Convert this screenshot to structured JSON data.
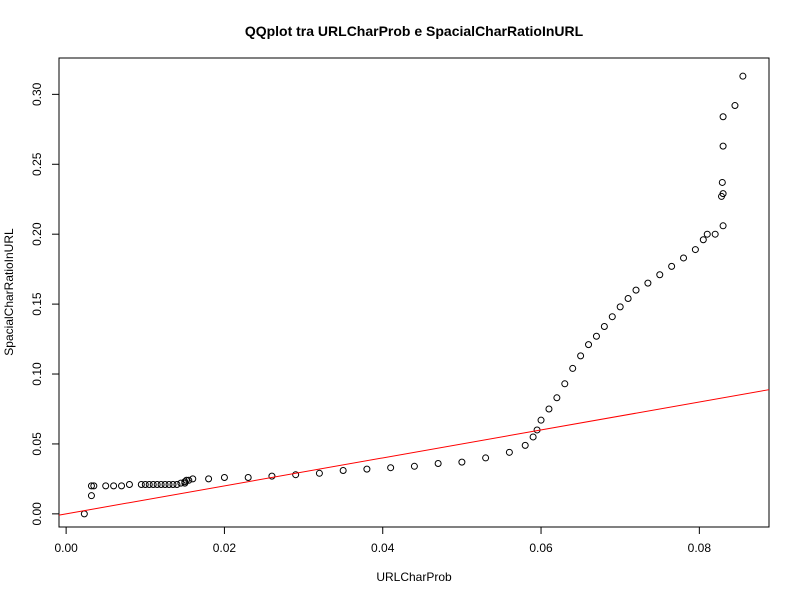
{
  "chart_data": {
    "type": "scatter",
    "title": "QQplot tra URLCharProb e SpacialCharRatioInURL",
    "xlabel": "URLCharProb",
    "ylabel": "SpacialCharRatioInURL",
    "xlim": [
      -0.0009,
      0.0888
    ],
    "ylim": [
      -0.0094,
      0.326
    ],
    "x_ticks": [
      0.0,
      0.02,
      0.04,
      0.06,
      0.08
    ],
    "x_tick_labels": [
      "0.00",
      "0.02",
      "0.04",
      "0.06",
      "0.08"
    ],
    "y_ticks": [
      0.0,
      0.05,
      0.1,
      0.15,
      0.2,
      0.25,
      0.3
    ],
    "y_tick_labels": [
      "0.00",
      "0.05",
      "0.10",
      "0.15",
      "0.20",
      "0.25",
      "0.30"
    ],
    "grid": false,
    "legend": "none",
    "point_color": "#000000",
    "reference_line": {
      "intercept": 0.0,
      "slope": 1.0,
      "color": "#ff0000"
    },
    "series": [
      {
        "points": [
          [
            0.0023,
            0.0
          ],
          [
            0.0032,
            0.013
          ],
          [
            0.0032,
            0.02
          ],
          [
            0.0035,
            0.02
          ],
          [
            0.005,
            0.02
          ],
          [
            0.006,
            0.02
          ],
          [
            0.007,
            0.02
          ],
          [
            0.008,
            0.021
          ],
          [
            0.0095,
            0.021
          ],
          [
            0.01,
            0.021
          ],
          [
            0.0105,
            0.021
          ],
          [
            0.011,
            0.021
          ],
          [
            0.0115,
            0.021
          ],
          [
            0.012,
            0.021
          ],
          [
            0.0125,
            0.021
          ],
          [
            0.013,
            0.021
          ],
          [
            0.0135,
            0.021
          ],
          [
            0.014,
            0.021
          ],
          [
            0.0145,
            0.022
          ],
          [
            0.015,
            0.022
          ],
          [
            0.015,
            0.023
          ],
          [
            0.0152,
            0.024
          ],
          [
            0.0155,
            0.024
          ],
          [
            0.016,
            0.025
          ],
          [
            0.018,
            0.025
          ],
          [
            0.02,
            0.026
          ],
          [
            0.023,
            0.026
          ],
          [
            0.026,
            0.027
          ],
          [
            0.029,
            0.028
          ],
          [
            0.032,
            0.029
          ],
          [
            0.035,
            0.031
          ],
          [
            0.038,
            0.032
          ],
          [
            0.041,
            0.033
          ],
          [
            0.044,
            0.034
          ],
          [
            0.047,
            0.036
          ],
          [
            0.05,
            0.037
          ],
          [
            0.053,
            0.04
          ],
          [
            0.056,
            0.044
          ],
          [
            0.058,
            0.049
          ],
          [
            0.059,
            0.055
          ],
          [
            0.0595,
            0.06
          ],
          [
            0.06,
            0.067
          ],
          [
            0.061,
            0.075
          ],
          [
            0.062,
            0.083
          ],
          [
            0.063,
            0.093
          ],
          [
            0.064,
            0.104
          ],
          [
            0.065,
            0.113
          ],
          [
            0.066,
            0.121
          ],
          [
            0.067,
            0.127
          ],
          [
            0.068,
            0.134
          ],
          [
            0.069,
            0.141
          ],
          [
            0.07,
            0.148
          ],
          [
            0.071,
            0.154
          ],
          [
            0.072,
            0.16
          ],
          [
            0.0735,
            0.165
          ],
          [
            0.075,
            0.171
          ],
          [
            0.0765,
            0.177
          ],
          [
            0.078,
            0.183
          ],
          [
            0.0795,
            0.189
          ],
          [
            0.0805,
            0.196
          ],
          [
            0.081,
            0.2
          ],
          [
            0.082,
            0.2
          ],
          [
            0.083,
            0.206
          ],
          [
            0.0828,
            0.227
          ],
          [
            0.083,
            0.229
          ],
          [
            0.0829,
            0.237
          ],
          [
            0.083,
            0.263
          ],
          [
            0.083,
            0.284
          ],
          [
            0.0845,
            0.292
          ],
          [
            0.0855,
            0.313
          ]
        ]
      }
    ]
  }
}
